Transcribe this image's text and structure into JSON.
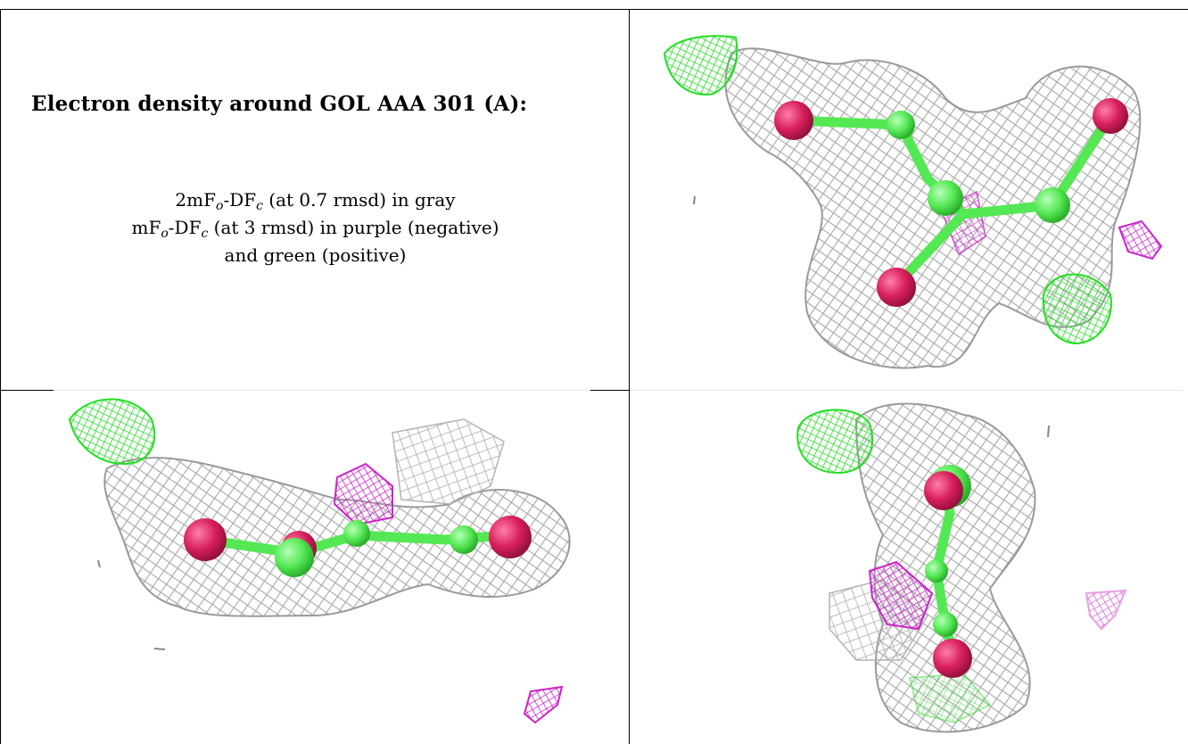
{
  "heading": "Electron density around GOL AAA 301 (A):",
  "legend": {
    "line1": {
      "m": "2mF",
      "s1": "o",
      "mid": "-DF",
      "s2": "c",
      "tail": " (at 0.7 rmsd) in gray"
    },
    "line2": {
      "m": "mF",
      "s1": "o",
      "mid": "-DF",
      "s2": "c",
      "tail": " (at 3 rmsd) in purple (negative)"
    },
    "line3": "and green (positive)"
  },
  "colors": {
    "mesh_2fofc": "#a8a8a8",
    "mesh_positive": "#22dd22",
    "mesh_negative": "#cc22cc",
    "carbon": "#55e855",
    "oxygen": "#d81f5c"
  },
  "icons": [
    "density-mesh",
    "glycerol-model"
  ]
}
